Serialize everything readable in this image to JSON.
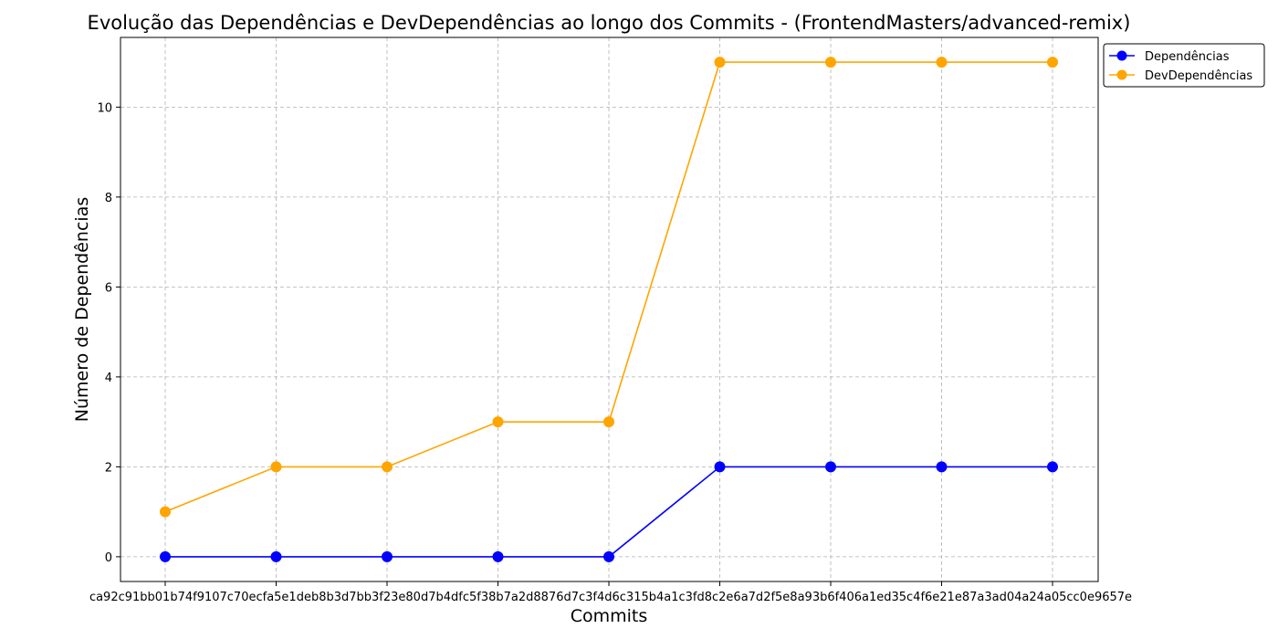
{
  "chart_data": {
    "type": "line",
    "title": "Evolução das Dependências e DevDependências ao longo dos Commits - (FrontendMasters/advanced-remix)",
    "xlabel": "Commits",
    "ylabel": "Número de Dependências",
    "categories": [
      "ca92c91bb01b74f9",
      "07c70ecfa5e1de",
      "8b3d7bb3f23e80d",
      "7b4dfc5f38b7a2d",
      "8876d7c3f4d6c31",
      "5b4a1c3fd8c2e6a",
      "7d2f5e8a93b6f40",
      "6a1ed35c4f6e21",
      "e87a3ad04a24a05cc0e9657e"
    ],
    "x_tick_text": "ca92c91bb01b74f9107c70ecfa5e1deb8b3d7bb3f23e80d7b4dfc5f38b7a2d8876d7c3f4d6c315b4a1c3fd8c2e6a7d2f5e8a93b6f406a1ed35c4f6e21e87a3ad04a24a05cc0e9657e",
    "ylim": [
      -0.55,
      11.55
    ],
    "yticks": [
      0,
      2,
      4,
      6,
      8,
      10
    ],
    "grid": true,
    "legend_position": "top-right, outside plot",
    "series": [
      {
        "name": "Dependências",
        "color": "#0000ff",
        "values": [
          0,
          0,
          0,
          0,
          0,
          2,
          2,
          2,
          2
        ]
      },
      {
        "name": "DevDependências",
        "color": "#ffa500",
        "values": [
          1,
          2,
          2,
          3,
          3,
          11,
          11,
          11,
          11
        ]
      }
    ]
  }
}
